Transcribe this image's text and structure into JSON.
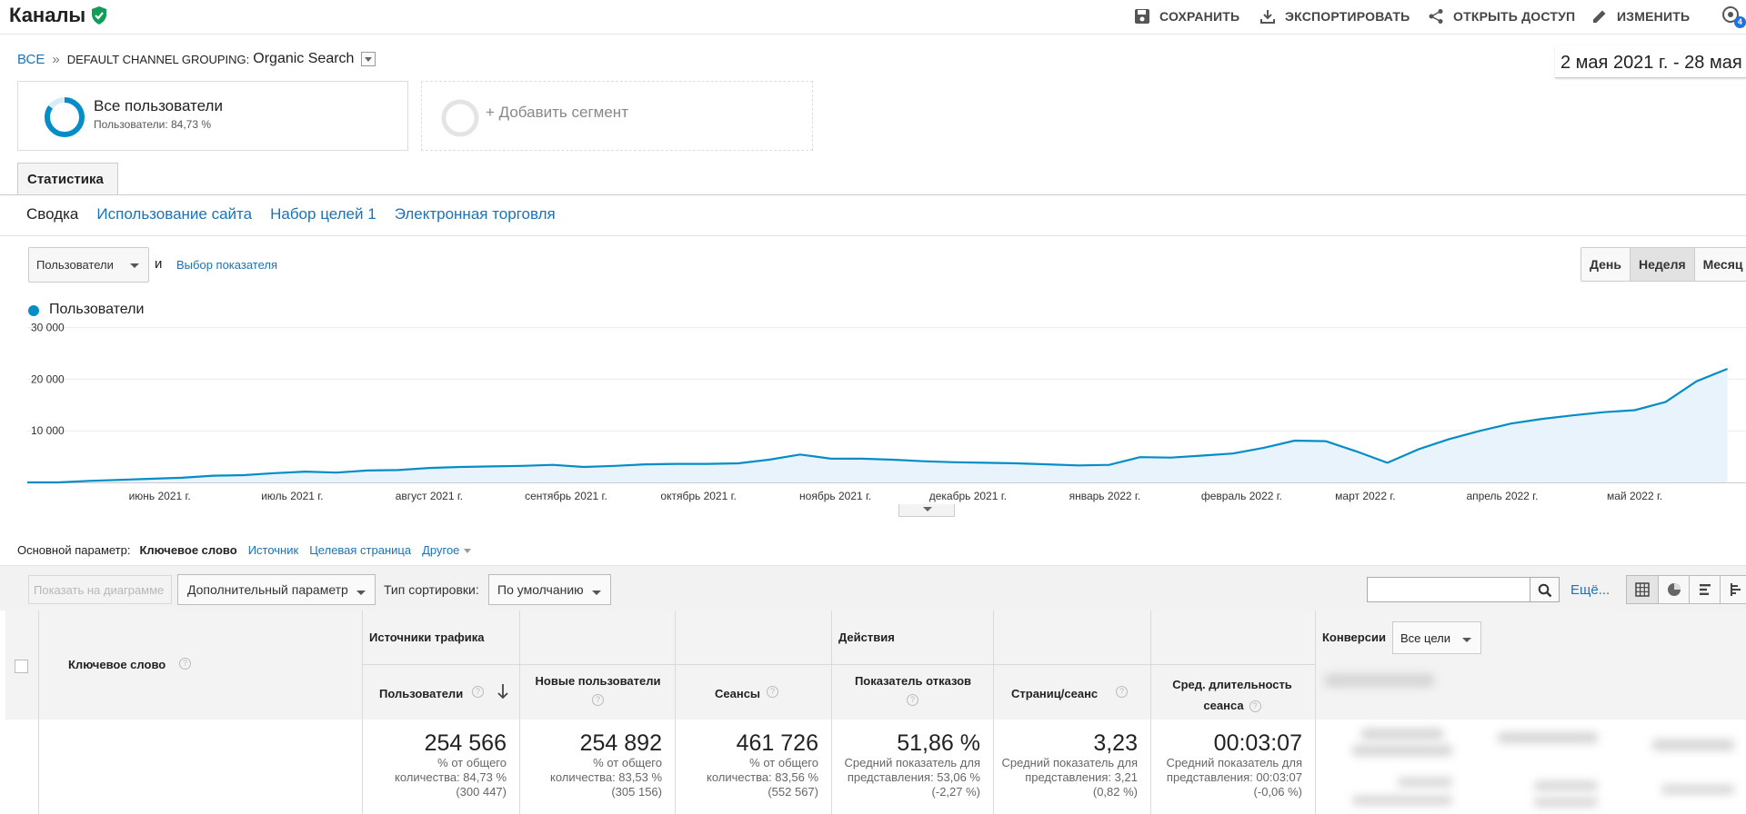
{
  "header": {
    "title": "Каналы",
    "actions": [
      {
        "label": "СОХРАНИТЬ",
        "icon": "save-icon"
      },
      {
        "label": "ЭКСПОРТИРОВАТЬ",
        "icon": "export-icon"
      },
      {
        "label": "ОТКРЫТЬ ДОСТУП",
        "icon": "share-icon"
      },
      {
        "label": "ИЗМЕНИТЬ",
        "icon": "edit-icon"
      }
    ],
    "notification_count": "4"
  },
  "breadcrumb": {
    "root": "ВСЕ",
    "separator": "»",
    "dimension": "DEFAULT CHANNEL GROUPING:",
    "value": "Organic Search"
  },
  "date_range": "2 мая 2021 г. - 28 мая 2022 г.",
  "segments": {
    "active": {
      "name": "Все пользователи",
      "share": "Пользователи: 84,73 %",
      "share_fraction": 0.8473
    },
    "add_label": "+ Добавить сегмент"
  },
  "tabs": {
    "active": "Статистика"
  },
  "subnav": [
    "Сводка",
    "Использование сайта",
    "Набор целей 1",
    "Электронная торговля"
  ],
  "metric_selector": {
    "value": "Пользователи",
    "conjunction": "и",
    "pick_label": "Выбор показателя"
  },
  "period_buttons": [
    {
      "label": "День",
      "active": false
    },
    {
      "label": "Неделя",
      "active": true
    },
    {
      "label": "Месяц",
      "active": false
    }
  ],
  "chart_data": {
    "type": "area",
    "series": [
      {
        "name": "Пользователи",
        "color": "#058dc7",
        "values": [
          0,
          0,
          300,
          500,
          700,
          900,
          1300,
          1400,
          1800,
          2100,
          1900,
          2300,
          2400,
          2800,
          3000,
          3100,
          3200,
          3400,
          3000,
          3200,
          3500,
          3600,
          3600,
          3700,
          4400,
          5400,
          4600,
          4600,
          4400,
          4100,
          3900,
          3800,
          3700,
          3500,
          3300,
          3400,
          4900,
          4800,
          5200,
          5600,
          6700,
          8100,
          8000,
          6000,
          3800,
          6400,
          8400,
          10000,
          11400,
          12300,
          13000,
          13600,
          14000,
          15600,
          19600,
          22000
        ]
      }
    ],
    "x_start": "2021-05-02",
    "x_interval": "week",
    "x_tick_labels": [
      "июнь 2021 г.",
      "июль 2021 г.",
      "август 2021 г.",
      "сентябрь 2021 г.",
      "октябрь 2021 г.",
      "ноябрь 2021 г.",
      "декабрь 2021 г.",
      "январь 2022 г.",
      "февраль 2022 г.",
      "март 2022 г.",
      "апрель 2022 г.",
      "май 2022 г."
    ],
    "y_tick_labels": [
      "30 000",
      "20 000",
      "10 000"
    ],
    "y_ticks": [
      30000,
      20000,
      10000
    ],
    "ylim": [
      0,
      30000
    ],
    "grid": true,
    "legend": "top-left"
  },
  "primary_dimension": {
    "label": "Основной параметр:",
    "active": "Ключевое слово",
    "options": [
      "Источник",
      "Целевая страница"
    ],
    "other": "Другое"
  },
  "table_toolbar": {
    "show_on_chart": "Показать на диаграмме",
    "secondary_dim": "Дополнительный параметр",
    "sort_label": "Тип сортировки:",
    "sort_value": "По умолчанию",
    "more": "Ещё..."
  },
  "table": {
    "keyword_header": "Ключевое слово",
    "groups": {
      "traffic": "Источники трафика",
      "behavior": "Действия",
      "conversions": "Конверсии"
    },
    "goal_select": "Все цели",
    "columns": [
      {
        "header": "Пользователи",
        "total": "254 566",
        "note": "% от общего количества: 84,73 % (300 447)"
      },
      {
        "header": "Новые пользователи",
        "total": "254 892",
        "note": "% от общего количества: 83,53 % (305 156)"
      },
      {
        "header": "Сеансы",
        "total": "461 726",
        "note": "% от общего количества: 83,56 % (552 567)"
      },
      {
        "header": "Показатель отказов",
        "total": "51,86 %",
        "note": "Средний показатель для представления: 53,06 % (-2,27 %)"
      },
      {
        "header": "Страниц/сеанс",
        "total": "3,23",
        "note": "Средний показатель для представления: 3,21 (0,82 %)"
      },
      {
        "header": "Сред. длительность сеанса",
        "total": "00:03:07",
        "note": "Средний показатель для представления: 00:03:07 (-0,06 %)"
      }
    ]
  }
}
